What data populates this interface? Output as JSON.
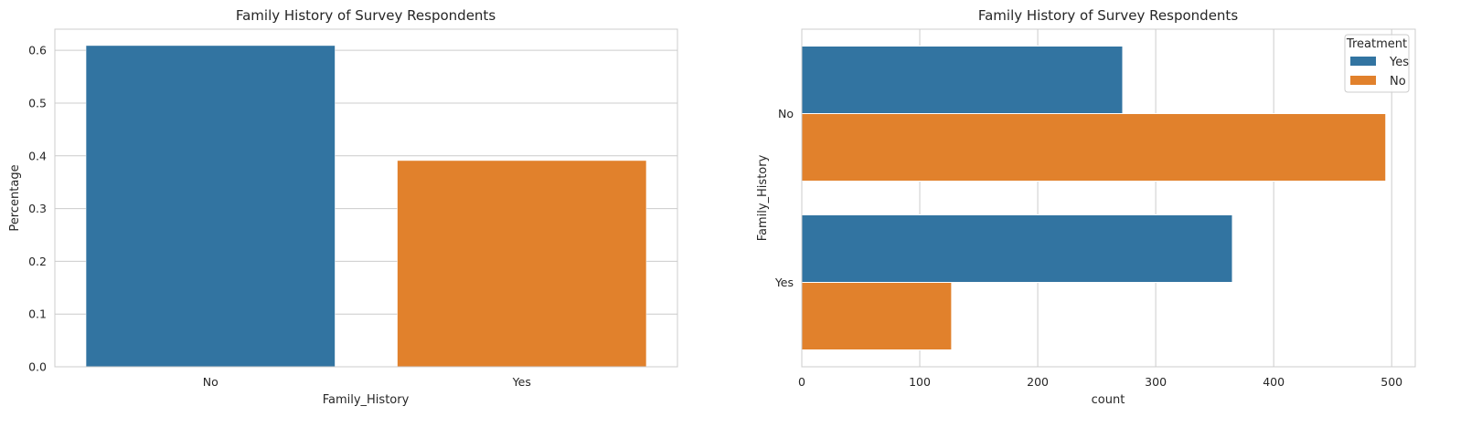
{
  "chart_data": [
    {
      "type": "bar",
      "orientation": "vertical",
      "title": "Family History of Survey Respondents",
      "xlabel": "Family_History",
      "ylabel": "Percentage",
      "categories": [
        "No",
        "Yes"
      ],
      "values": [
        0.609,
        0.391
      ],
      "colors": [
        "#3274a1",
        "#e1812c"
      ],
      "ylim": [
        0,
        0.64
      ],
      "yticks": [
        0.0,
        0.1,
        0.2,
        0.3,
        0.4,
        0.5,
        0.6
      ],
      "ytick_labels": [
        "0.0",
        "0.1",
        "0.2",
        "0.3",
        "0.4",
        "0.5",
        "0.6"
      ],
      "grid": true
    },
    {
      "type": "bar",
      "orientation": "horizontal",
      "title": "Family History of Survey Respondents",
      "xlabel": "count",
      "ylabel": "Family_History",
      "categories": [
        "No",
        "Yes"
      ],
      "series": [
        {
          "name": "Yes",
          "color": "#3274a1",
          "values": [
            272,
            365
          ]
        },
        {
          "name": "No",
          "color": "#e1812c",
          "values": [
            495,
            127
          ]
        }
      ],
      "xlim": [
        0,
        520
      ],
      "xticks": [
        0,
        100,
        200,
        300,
        400,
        500
      ],
      "xtick_labels": [
        "0",
        "100",
        "200",
        "300",
        "400",
        "500"
      ],
      "legend": {
        "title": "Treatment",
        "position": "top-right"
      },
      "grid": true
    }
  ]
}
